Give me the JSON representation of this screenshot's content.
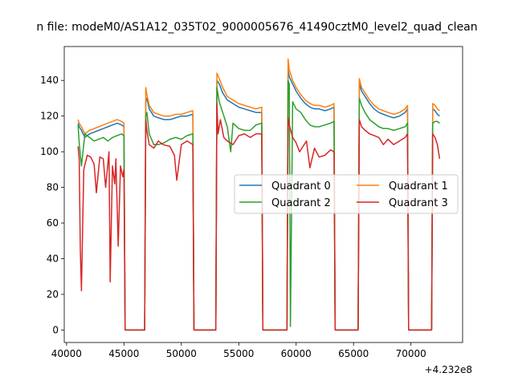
{
  "chart_data": {
    "type": "line",
    "title": "n file: modeM0/AS1A12_035T02_9000005676_41490cztM0_level2_quad_clean",
    "xlabel": "",
    "ylabel": "",
    "x_offset_label": "+4.232e8",
    "xlim": [
      39800,
      74500
    ],
    "ylim": [
      -7,
      159
    ],
    "x_ticks": [
      40000,
      45000,
      50000,
      55000,
      60000,
      65000,
      70000
    ],
    "x_tick_labels": [
      "40000",
      "45000",
      "50000",
      "55000",
      "60000",
      "65000",
      "70000"
    ],
    "y_ticks": [
      0,
      20,
      40,
      60,
      80,
      100,
      120,
      140
    ],
    "y_tick_labels": [
      "0",
      "20",
      "40",
      "60",
      "80",
      "100",
      "120",
      "140"
    ],
    "grid": false,
    "legend": {
      "placement": "center-right",
      "columns": 2
    },
    "series": [
      {
        "name": "Quadrant 0",
        "color": "#1f77b4",
        "x": [
          41000,
          41100,
          41300,
          41600,
          42000,
          42400,
          42800,
          43200,
          43600,
          44000,
          44400,
          44800,
          45000,
          45100,
          46800,
          46900,
          47000,
          47200,
          47600,
          48000,
          48500,
          49000,
          49500,
          50000,
          50500,
          51000,
          51100,
          51200,
          53000,
          53100,
          53300,
          53600,
          54000,
          54500,
          55000,
          55500,
          56000,
          56500,
          57000,
          57100,
          57200,
          59200,
          59300,
          59400,
          59700,
          60000,
          60400,
          60800,
          61200,
          61600,
          62000,
          62500,
          63000,
          63300,
          63400,
          63500,
          65400,
          65500,
          65700,
          66000,
          66400,
          66800,
          67200,
          67600,
          68000,
          68500,
          69000,
          69500,
          69700,
          69800,
          71800,
          71900,
          72100,
          72300,
          72500
        ],
        "y": [
          116,
          114,
          112,
          108,
          110,
          111,
          112,
          113,
          114,
          115,
          116,
          115,
          114,
          0,
          0,
          128,
          130,
          124,
          120,
          119,
          118,
          118,
          119,
          120,
          120,
          121,
          0,
          0,
          0,
          140,
          138,
          133,
          129,
          127,
          125,
          124,
          123,
          122,
          122,
          0,
          0,
          0,
          146,
          142,
          138,
          134,
          130,
          127,
          125,
          124,
          124,
          123,
          124,
          125,
          0,
          0,
          0,
          138,
          134,
          131,
          127,
          124,
          122,
          121,
          120,
          119,
          120,
          122,
          124,
          0,
          0,
          124,
          123,
          121,
          120
        ]
      },
      {
        "name": "Quadrant 1",
        "color": "#ff7f0e",
        "x": [
          41000,
          41100,
          41300,
          41600,
          42000,
          42400,
          42800,
          43200,
          43600,
          44000,
          44400,
          44800,
          45000,
          45100,
          46800,
          46900,
          47000,
          47200,
          47600,
          48000,
          48500,
          49000,
          49500,
          50000,
          50500,
          51000,
          51100,
          51200,
          53000,
          53100,
          53300,
          53600,
          54000,
          54500,
          55000,
          55500,
          56000,
          56500,
          57000,
          57100,
          57200,
          59200,
          59300,
          59400,
          59700,
          60000,
          60400,
          60800,
          61200,
          61600,
          62000,
          62500,
          63000,
          63300,
          63400,
          63500,
          65400,
          65500,
          65700,
          66000,
          66400,
          66800,
          67200,
          67600,
          68000,
          68500,
          69000,
          69500,
          69700,
          69800,
          71800,
          71900,
          72100,
          72300,
          72500
        ],
        "y": [
          118,
          116,
          114,
          110,
          112,
          113,
          114,
          115,
          116,
          117,
          118,
          117,
          116,
          0,
          0,
          136,
          132,
          126,
          122,
          121,
          120,
          120,
          121,
          121,
          122,
          123,
          0,
          0,
          0,
          144,
          141,
          136,
          131,
          129,
          127,
          126,
          125,
          124,
          125,
          0,
          0,
          0,
          152,
          146,
          140,
          136,
          132,
          129,
          127,
          126,
          126,
          125,
          126,
          127,
          0,
          0,
          0,
          141,
          136,
          133,
          129,
          126,
          124,
          123,
          122,
          121,
          122,
          124,
          126,
          0,
          0,
          127,
          126,
          124,
          123
        ]
      },
      {
        "name": "Quadrant 2",
        "color": "#2ca02c",
        "x": [
          41000,
          41100,
          41300,
          41600,
          42000,
          42400,
          42800,
          43200,
          43600,
          44000,
          44400,
          44800,
          45000,
          45100,
          46800,
          46900,
          47000,
          47200,
          47600,
          48000,
          48500,
          49000,
          49500,
          50000,
          50500,
          51000,
          51100,
          51200,
          53000,
          53100,
          53300,
          53600,
          54000,
          54300,
          54500,
          55000,
          55500,
          56000,
          56500,
          57000,
          57100,
          57200,
          59200,
          59300,
          59400,
          59500,
          59700,
          60000,
          60400,
          60800,
          61200,
          61600,
          62000,
          62500,
          63000,
          63300,
          63400,
          63500,
          65400,
          65500,
          65700,
          66000,
          66400,
          66800,
          67200,
          67600,
          68000,
          68500,
          69000,
          69500,
          69700,
          69800,
          71800,
          71900,
          72100,
          72300,
          72500
        ],
        "y": [
          115,
          105,
          92,
          110,
          108,
          106,
          107,
          108,
          106,
          108,
          109,
          110,
          109,
          0,
          0,
          120,
          122,
          110,
          104,
          104,
          105,
          107,
          108,
          107,
          109,
          110,
          0,
          0,
          0,
          136,
          128,
          122,
          114,
          100,
          116,
          113,
          112,
          112,
          115,
          116,
          0,
          0,
          0,
          140,
          138,
          2,
          128,
          124,
          122,
          118,
          115,
          114,
          114,
          115,
          116,
          117,
          0,
          0,
          0,
          130,
          126,
          122,
          118,
          116,
          114,
          113,
          113,
          112,
          113,
          114,
          116,
          0,
          0,
          116,
          117,
          117,
          116
        ]
      },
      {
        "name": "Quadrant 3",
        "color": "#d62728",
        "x": [
          41000,
          41100,
          41200,
          41300,
          41500,
          41800,
          42100,
          42400,
          42600,
          42900,
          43200,
          43400,
          43700,
          43800,
          44000,
          44200,
          44300,
          44500,
          44700,
          44900,
          45000,
          45100,
          46800,
          46900,
          47000,
          47200,
          47600,
          48000,
          48400,
          49000,
          49400,
          49600,
          50000,
          50500,
          51000,
          51100,
          51200,
          53000,
          53100,
          53200,
          53400,
          53700,
          54000,
          54500,
          55000,
          55500,
          56000,
          56500,
          57000,
          57100,
          57200,
          59200,
          59300,
          59400,
          59700,
          60000,
          60300,
          60600,
          60900,
          61200,
          61600,
          62000,
          62500,
          63000,
          63300,
          63400,
          63500,
          65400,
          65500,
          65700,
          66000,
          66400,
          66800,
          67200,
          67600,
          68000,
          68500,
          69000,
          69500,
          69700,
          69800,
          71800,
          71900,
          72100,
          72300,
          72500
        ],
        "y": [
          103,
          96,
          45,
          22,
          90,
          98,
          97,
          93,
          77,
          97,
          96,
          80,
          100,
          27,
          92,
          82,
          96,
          47,
          92,
          86,
          90,
          0,
          0,
          118,
          112,
          104,
          102,
          106,
          104,
          103,
          98,
          84,
          104,
          106,
          104,
          0,
          0,
          0,
          127,
          110,
          118,
          108,
          106,
          104,
          109,
          110,
          108,
          110,
          110,
          0,
          0,
          0,
          119,
          115,
          108,
          105,
          100,
          103,
          106,
          91,
          102,
          97,
          98,
          101,
          100,
          0,
          0,
          0,
          118,
          114,
          112,
          110,
          109,
          108,
          104,
          107,
          104,
          106,
          108,
          110,
          0,
          0,
          110,
          108,
          104,
          96
        ]
      }
    ]
  }
}
